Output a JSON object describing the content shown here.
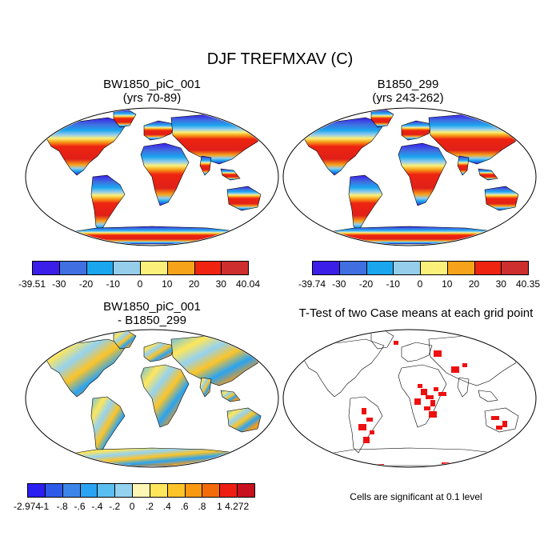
{
  "figure_title": "DJF TREFMXAV (C)",
  "panels": {
    "top_left": {
      "title_line1": "BW1850_piC_001",
      "title_line2": "(yrs 70-89)"
    },
    "top_right": {
      "title_line1": "B1850_299",
      "title_line2": "(yrs 243-262)"
    },
    "bottom_left": {
      "title_line1": "BW1850_piC_001",
      "title_line2": "- B1850_299"
    },
    "bottom_right": {
      "title_line1": "T-Test of two Case means at each grid point",
      "note": "Cells are significant at 0.1 level"
    }
  },
  "colorbars": {
    "abs_colors": [
      "#3b1ee8",
      "#3f6fe0",
      "#1aa6ef",
      "#96cdea",
      "#fbf07a",
      "#f7a31a",
      "#ee2410",
      "#cd2f2f"
    ],
    "top_left_labels": [
      "-39.51",
      "-30",
      "-20",
      "-10",
      "0",
      "10",
      "20",
      "30",
      "40.04"
    ],
    "top_right_labels": [
      "-39.74",
      "-30",
      "-20",
      "-10",
      "0",
      "10",
      "20",
      "30",
      "40.35"
    ],
    "diff_colors": [
      "#2b1ef0",
      "#2d5be8",
      "#3c86ea",
      "#2aa3f2",
      "#5cbef0",
      "#95d2f0",
      "#fff6b5",
      "#ffe65a",
      "#fcc428",
      "#f99a12",
      "#f46a0a",
      "#ee1e12",
      "#c8101e"
    ],
    "diff_labels": [
      "-2.974",
      "-1",
      "-.8",
      "-.6",
      "-.4",
      "-.2",
      "0",
      ".2",
      ".4",
      ".6",
      ".8",
      "1",
      "4.272"
    ]
  },
  "map_colors": {
    "ocean": "#ffffff",
    "significant": "#ee1010"
  }
}
